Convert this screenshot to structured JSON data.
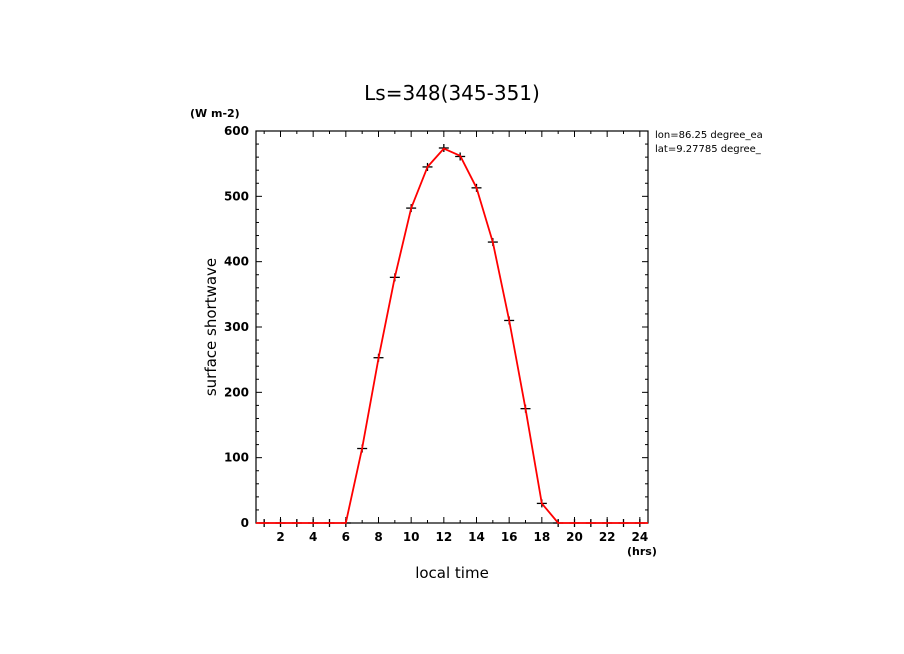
{
  "chart_data": {
    "type": "line",
    "title": "Ls=348(345-351)",
    "xlabel": "local time",
    "ylabel": "surface shortwave",
    "x_unit": "(hrs)",
    "y_unit": "(W m-2)",
    "xlim": [
      0.5,
      24.5
    ],
    "ylim": [
      0,
      600
    ],
    "x_tick_labels": [
      "2",
      "4",
      "6",
      "8",
      "10",
      "12",
      "14",
      "16",
      "18",
      "20",
      "22",
      "24"
    ],
    "y_tick_labels": [
      "0",
      "100",
      "200",
      "300",
      "400",
      "500",
      "600"
    ],
    "annotations": [
      "lon=86.25 degree_ea",
      "lat=9.27785 degree_"
    ],
    "line_color": "#ff0000",
    "marker_color": "#000000",
    "x": [
      0.5,
      1,
      2,
      3,
      4,
      5,
      6,
      7,
      8,
      9,
      10,
      11,
      12,
      13,
      14,
      15,
      16,
      17,
      18,
      19,
      20,
      21,
      22,
      23,
      24,
      24.5
    ],
    "line_values": [
      0,
      0,
      0,
      0,
      0,
      0,
      0,
      115,
      252,
      376,
      482,
      545,
      573,
      562,
      513,
      430,
      310,
      175,
      30,
      0,
      0,
      0,
      0,
      0,
      0,
      0
    ],
    "marker_x": [
      1,
      2,
      3,
      4,
      5,
      6,
      7,
      8,
      9,
      10,
      11,
      12,
      13,
      14,
      15,
      16,
      17,
      18,
      19,
      20,
      21,
      22,
      23,
      24
    ],
    "marker_values": [
      0,
      0,
      0,
      0,
      0,
      0,
      114,
      253,
      376,
      482,
      545,
      574,
      561,
      513,
      430,
      310,
      175,
      30,
      0,
      0,
      0,
      0,
      0,
      0
    ]
  }
}
